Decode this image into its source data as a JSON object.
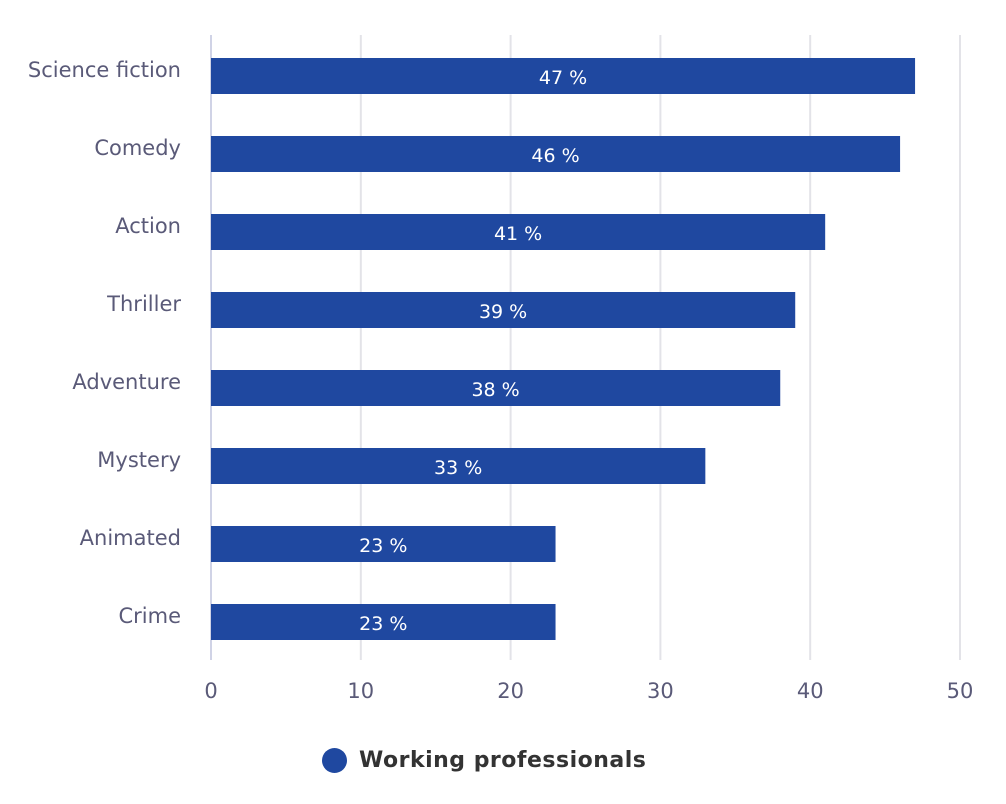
{
  "chart_data": {
    "type": "bar",
    "orientation": "horizontal",
    "categories": [
      "Science fiction",
      "Comedy",
      "Action",
      "Thriller",
      "Adventure",
      "Mystery",
      "Animated",
      "Crime"
    ],
    "series": [
      {
        "name": "Working professionals",
        "values": [
          47,
          46,
          41,
          39,
          38,
          33,
          23,
          23
        ],
        "color": "#1f48a0"
      }
    ],
    "data_labels": [
      "47 %",
      "46 %",
      "41 %",
      "39 %",
      "38 %",
      "33 %",
      "23 %",
      "23 %"
    ],
    "xlim": [
      0,
      50
    ],
    "xticks": [
      0,
      10,
      20,
      30,
      40,
      50
    ],
    "grid": true,
    "legend_position": "bottom"
  }
}
